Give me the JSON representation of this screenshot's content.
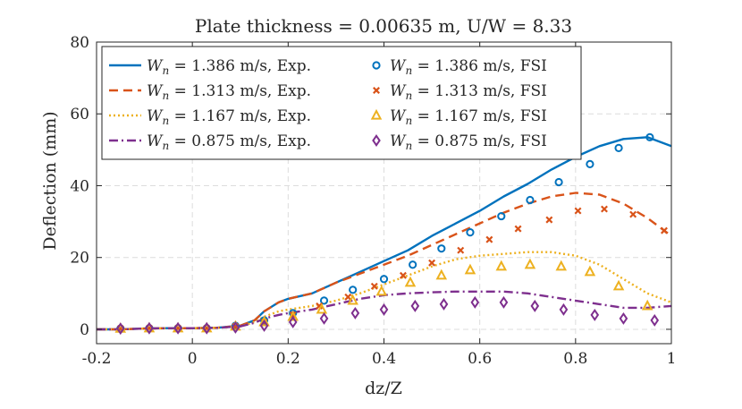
{
  "chart_data": {
    "type": "line",
    "title": "Plate thickness = 0.00635 m, U/W = 8.33",
    "xlabel": "dz/Z",
    "ylabel": "Deflection (mm)",
    "xlim": [
      -0.2,
      1.0
    ],
    "ylim": [
      -4,
      80
    ],
    "xticks": [
      -0.2,
      0,
      0.2,
      0.4,
      0.6,
      0.8,
      1
    ],
    "xtick_labels": [
      "-0.2",
      "0",
      "0.2",
      "0.4",
      "0.6",
      "0.8",
      "1"
    ],
    "yticks": [
      0,
      20,
      40,
      60,
      80
    ],
    "ytick_labels": [
      "0",
      "20",
      "40",
      "60",
      "80"
    ],
    "grid": true,
    "legend_position": "top-left",
    "series": [
      {
        "name": "W_n = 1.386 m/s, Exp.",
        "legend_var": "W",
        "legend_sub": "n",
        "legend_rest": " = 1.386 m/s, Exp.",
        "color": "#0072BD",
        "style": "solid",
        "x": [
          -0.2,
          -0.15,
          -0.1,
          -0.05,
          0.0,
          0.05,
          0.1,
          0.13,
          0.15,
          0.18,
          0.2,
          0.25,
          0.3,
          0.35,
          0.4,
          0.45,
          0.5,
          0.55,
          0.6,
          0.65,
          0.7,
          0.75,
          0.8,
          0.85,
          0.9,
          0.95,
          1.0
        ],
        "y": [
          0.0,
          0.0,
          0.2,
          0.3,
          0.3,
          0.4,
          1.0,
          2.5,
          5.0,
          7.5,
          8.5,
          10.0,
          13.0,
          16.0,
          19.0,
          22.0,
          26.0,
          29.5,
          33.0,
          37.0,
          40.5,
          44.5,
          48.0,
          51.0,
          53.0,
          53.5,
          51.0
        ]
      },
      {
        "name": "W_n = 1.313 m/s, Exp.",
        "legend_var": "W",
        "legend_sub": "n",
        "legend_rest": " = 1.313 m/s, Exp.",
        "color": "#D95319",
        "style": "dashed",
        "x": [
          -0.2,
          -0.15,
          -0.1,
          -0.05,
          0.0,
          0.05,
          0.1,
          0.13,
          0.15,
          0.18,
          0.2,
          0.25,
          0.3,
          0.35,
          0.4,
          0.45,
          0.5,
          0.55,
          0.6,
          0.65,
          0.7,
          0.75,
          0.8,
          0.85,
          0.9,
          0.95,
          1.0
        ],
        "y": [
          0.0,
          0.0,
          0.2,
          0.3,
          0.3,
          0.4,
          1.0,
          2.5,
          5.0,
          7.5,
          8.5,
          10.0,
          13.0,
          15.5,
          18.0,
          20.5,
          23.5,
          26.5,
          29.5,
          32.5,
          35.0,
          37.0,
          38.0,
          37.5,
          35.0,
          31.0,
          26.0
        ]
      },
      {
        "name": "W_n = 1.167 m/s, Exp.",
        "legend_var": "W",
        "legend_sub": "n",
        "legend_rest": " = 1.167 m/s, Exp.",
        "color": "#EDB120",
        "style": "dotted",
        "x": [
          -0.2,
          -0.15,
          -0.1,
          -0.05,
          0.0,
          0.05,
          0.1,
          0.13,
          0.15,
          0.18,
          0.2,
          0.25,
          0.3,
          0.35,
          0.4,
          0.45,
          0.5,
          0.55,
          0.6,
          0.65,
          0.7,
          0.75,
          0.8,
          0.85,
          0.9,
          0.95,
          1.0
        ],
        "y": [
          0.0,
          0.0,
          0.2,
          0.3,
          0.3,
          0.4,
          0.8,
          2.0,
          3.5,
          5.0,
          5.5,
          6.5,
          8.0,
          10.0,
          12.5,
          15.0,
          17.5,
          19.5,
          20.5,
          21.0,
          21.5,
          21.5,
          20.5,
          18.0,
          14.0,
          10.0,
          7.5
        ]
      },
      {
        "name": "W_n = 0.875 m/s, Exp.",
        "legend_var": "W",
        "legend_sub": "n",
        "legend_rest": " = 0.875 m/s, Exp.",
        "color": "#7E2F8E",
        "style": "dashdot",
        "x": [
          -0.2,
          -0.15,
          -0.1,
          -0.05,
          0.0,
          0.05,
          0.1,
          0.13,
          0.15,
          0.18,
          0.2,
          0.25,
          0.3,
          0.35,
          0.4,
          0.45,
          0.5,
          0.55,
          0.6,
          0.65,
          0.7,
          0.75,
          0.8,
          0.85,
          0.9,
          0.95,
          1.0
        ],
        "y": [
          0.0,
          0.0,
          0.2,
          0.3,
          0.3,
          0.4,
          0.8,
          1.8,
          3.0,
          4.0,
          4.5,
          5.5,
          7.0,
          8.5,
          9.5,
          10.0,
          10.3,
          10.5,
          10.5,
          10.5,
          10.0,
          9.0,
          8.0,
          7.0,
          6.0,
          6.0,
          6.5
        ]
      },
      {
        "name": "W_n = 1.386 m/s, FSI",
        "legend_var": "W",
        "legend_sub": "n",
        "legend_rest": " = 1.386 m/s, FSI",
        "color": "#0072BD",
        "marker": "circle",
        "x": [
          -0.15,
          -0.09,
          -0.03,
          0.03,
          0.09,
          0.15,
          0.21,
          0.275,
          0.335,
          0.4,
          0.46,
          0.52,
          0.58,
          0.645,
          0.705,
          0.765,
          0.83,
          0.89,
          0.955
        ],
        "y": [
          0.2,
          0.3,
          0.3,
          0.3,
          1.0,
          2.5,
          4.5,
          8.0,
          11.0,
          14.0,
          18.0,
          22.5,
          27.0,
          31.5,
          36.0,
          41.0,
          46.0,
          50.5,
          53.5
        ]
      },
      {
        "name": "W_n = 1.313 m/s, FSI",
        "legend_var": "W",
        "legend_sub": "n",
        "legend_rest": " = 1.313 m/s, FSI",
        "color": "#D95319",
        "marker": "x",
        "x": [
          -0.15,
          -0.09,
          -0.03,
          0.03,
          0.09,
          0.15,
          0.21,
          0.265,
          0.325,
          0.38,
          0.44,
          0.5,
          0.56,
          0.62,
          0.68,
          0.745,
          0.805,
          0.86,
          0.92,
          0.985
        ],
        "y": [
          0.2,
          0.3,
          0.3,
          0.3,
          0.8,
          2.0,
          4.0,
          6.5,
          9.0,
          12.0,
          15.0,
          18.5,
          22.0,
          25.0,
          28.0,
          30.5,
          33.0,
          33.5,
          32.0,
          27.5
        ]
      },
      {
        "name": "W_n = 1.167 m/s, FSI",
        "legend_var": "W",
        "legend_sub": "n",
        "legend_rest": " = 1.167 m/s, FSI",
        "color": "#EDB120",
        "marker": "triangle",
        "x": [
          -0.15,
          -0.09,
          -0.03,
          0.03,
          0.09,
          0.15,
          0.21,
          0.27,
          0.335,
          0.395,
          0.455,
          0.52,
          0.58,
          0.645,
          0.705,
          0.77,
          0.83,
          0.89,
          0.95
        ],
        "y": [
          0.2,
          0.3,
          0.3,
          0.3,
          0.8,
          2.0,
          3.5,
          5.5,
          8.0,
          10.5,
          13.0,
          15.0,
          16.5,
          17.5,
          18.0,
          17.5,
          16.0,
          12.0,
          6.5
        ]
      },
      {
        "name": "W_n = 0.875 m/s, FSI",
        "legend_var": "W",
        "legend_sub": "n",
        "legend_rest": " = 0.875 m/s, FSI",
        "color": "#7E2F8E",
        "marker": "diamond",
        "x": [
          -0.15,
          -0.09,
          -0.03,
          0.03,
          0.09,
          0.15,
          0.21,
          0.275,
          0.34,
          0.4,
          0.465,
          0.525,
          0.59,
          0.65,
          0.715,
          0.775,
          0.84,
          0.9,
          0.965
        ],
        "y": [
          0.2,
          0.3,
          0.3,
          0.3,
          0.5,
          1.0,
          2.0,
          3.0,
          4.5,
          5.5,
          6.5,
          7.0,
          7.5,
          7.5,
          6.5,
          5.5,
          4.0,
          3.0,
          2.5
        ]
      }
    ]
  }
}
